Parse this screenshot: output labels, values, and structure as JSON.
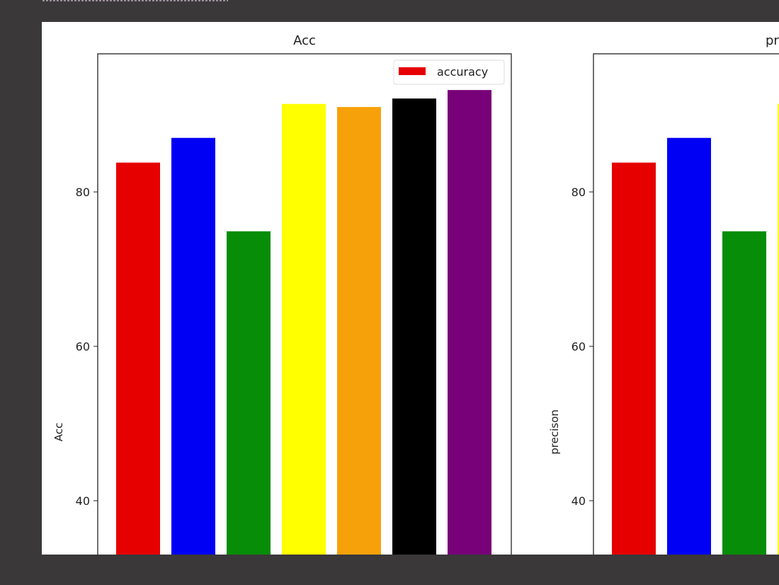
{
  "background_color": "#3a3839",
  "chart_data": [
    {
      "type": "bar",
      "title": "Acc",
      "xlabel": "",
      "ylabel": "Acc",
      "ylim": [
        33,
        97.9
      ],
      "yticks": [
        40,
        60,
        80
      ],
      "grid": false,
      "legend": {
        "placement": "upper-right",
        "entries": [
          {
            "label": "accuracy",
            "color": "#e60000"
          }
        ]
      },
      "values": [
        83.8,
        87.0,
        74.9,
        91.4,
        91.0,
        92.1,
        93.2
      ],
      "colors": [
        "#e60000",
        "#0000f5",
        "#078d07",
        "#ffff00",
        "#f7a10a",
        "#000000",
        "#780078"
      ]
    },
    {
      "type": "bar",
      "title": "pr",
      "xlabel": "",
      "ylabel": "precison",
      "ylim": [
        33,
        97.9
      ],
      "yticks": [
        40,
        60,
        80
      ],
      "grid": false,
      "values": [
        83.8,
        87.0,
        74.9,
        91.4
      ],
      "colors": [
        "#e60000",
        "#0000f5",
        "#078d07",
        "#ffff00"
      ]
    }
  ]
}
